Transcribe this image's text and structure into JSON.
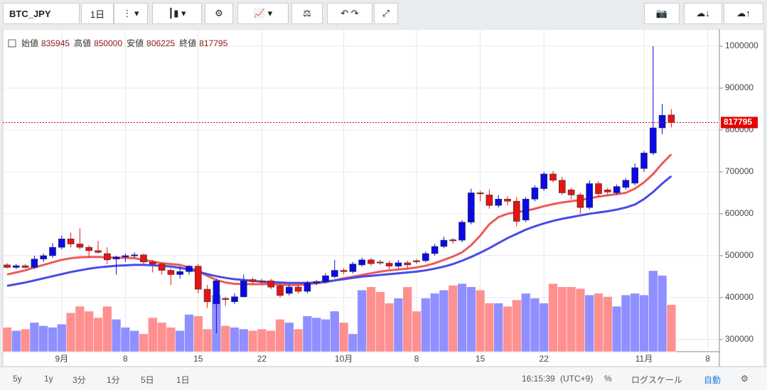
{
  "ui": {
    "symbol": "BTC_JPY",
    "interval": "1日",
    "ranges": [
      "5y",
      "1y",
      "3分",
      "1分",
      "5日",
      "1日"
    ],
    "time": "16:15:39",
    "timezone": "(UTC+9)",
    "percent": "%",
    "log_scale": "ログスケール",
    "auto": "自動"
  },
  "chart_data": {
    "type": "candlestick",
    "ohlc_labels": [
      "始値",
      "高値",
      "安値",
      "終値"
    ],
    "categories": [
      null,
      null,
      null,
      null,
      null,
      null,
      "9月",
      null,
      null,
      null,
      null,
      null,
      null,
      "8",
      null,
      null,
      null,
      null,
      null,
      null,
      null,
      "15",
      null,
      null,
      null,
      null,
      null,
      null,
      "22",
      null,
      null,
      null,
      null,
      null,
      null,
      null,
      null,
      "10月",
      null,
      null,
      null,
      null,
      null,
      null,
      null,
      "8",
      null,
      null,
      null,
      null,
      null,
      null,
      "15",
      null,
      null,
      null,
      null,
      null,
      null,
      "22",
      null,
      null,
      null,
      null,
      null,
      null,
      null,
      null,
      null,
      null,
      "11月",
      null,
      null,
      null,
      null,
      null,
      null,
      "8"
    ],
    "open": [
      478000,
      472000,
      476000,
      472000,
      492000,
      500000,
      520000,
      540000,
      528000,
      520000,
      512000,
      505000,
      492000,
      497000,
      500000,
      502000,
      485000,
      480000,
      465000,
      455000,
      462000,
      475000,
      420000,
      385000,
      398000,
      390000,
      402000,
      443000,
      440000,
      440000,
      428000,
      410000,
      425000,
      415000,
      435000,
      438000,
      450000,
      465000,
      462000,
      478000,
      490000,
      485000,
      482000,
      475000,
      483000,
      488000,
      488000,
      505000,
      522000,
      538000,
      537000,
      580000,
      650000,
      645000,
      620000,
      635000,
      630000,
      585000,
      635000,
      660000,
      695000,
      680000,
      657000,
      645000,
      615000,
      672000,
      657000,
      650000,
      663000,
      673000,
      708000,
      745000,
      805000,
      835945,
      null,
      null,
      null,
      null
    ],
    "high": [
      482000,
      480000,
      480000,
      500000,
      505000,
      530000,
      548000,
      555000,
      565000,
      525000,
      535000,
      520000,
      500000,
      505000,
      508000,
      505000,
      490000,
      485000,
      470000,
      475000,
      478000,
      480000,
      430000,
      445000,
      402000,
      410000,
      455000,
      448000,
      445000,
      445000,
      432000,
      430000,
      430000,
      440000,
      442000,
      458000,
      490000,
      470000,
      485000,
      495000,
      495000,
      490000,
      488000,
      490000,
      488000,
      492000,
      510000,
      528000,
      545000,
      542000,
      585000,
      660000,
      655000,
      658000,
      645000,
      642000,
      640000,
      640000,
      668000,
      700000,
      702000,
      688000,
      662000,
      650000,
      680000,
      678000,
      662000,
      670000,
      685000,
      720000,
      750000,
      1000000,
      862000,
      850000,
      null,
      null,
      null,
      null
    ],
    "low": [
      470000,
      468000,
      470000,
      468000,
      485000,
      495000,
      515000,
      520000,
      515000,
      495000,
      505000,
      480000,
      455000,
      485000,
      495000,
      480000,
      460000,
      455000,
      430000,
      445000,
      455000,
      410000,
      375000,
      315000,
      380000,
      385000,
      400000,
      430000,
      430000,
      420000,
      400000,
      405000,
      410000,
      410000,
      430000,
      434000,
      446000,
      455000,
      458000,
      474000,
      476000,
      478000,
      468000,
      470000,
      470000,
      480000,
      484000,
      500000,
      518000,
      528000,
      532000,
      575000,
      630000,
      612000,
      615000,
      620000,
      570000,
      580000,
      630000,
      655000,
      675000,
      645000,
      635000,
      600000,
      610000,
      640000,
      645000,
      645000,
      658000,
      668000,
      700000,
      740000,
      790000,
      806225,
      null,
      null,
      null,
      null
    ],
    "close": [
      472000,
      476000,
      472000,
      492000,
      500000,
      520000,
      540000,
      528000,
      520000,
      512000,
      508000,
      490000,
      497000,
      500000,
      502000,
      485000,
      480000,
      465000,
      455000,
      462000,
      475000,
      420000,
      390000,
      440000,
      396000,
      402000,
      440000,
      438000,
      437000,
      425000,
      405000,
      425000,
      415000,
      435000,
      438000,
      452000,
      465000,
      462000,
      480000,
      490000,
      481000,
      483000,
      475000,
      483000,
      478000,
      486000,
      505000,
      522000,
      537000,
      536000,
      580000,
      650000,
      648000,
      620000,
      635000,
      630000,
      582000,
      635000,
      662000,
      695000,
      680000,
      650000,
      645000,
      615000,
      672000,
      648000,
      652000,
      665000,
      680000,
      710000,
      745000,
      805000,
      835000,
      817795,
      null,
      null,
      null,
      null
    ],
    "up_color": "#0a0ae6",
    "down_color": "#e61414",
    "volume": {
      "values": [
        30,
        26,
        28,
        36,
        32,
        30,
        34,
        48,
        56,
        50,
        42,
        56,
        40,
        30,
        26,
        22,
        42,
        36,
        30,
        26,
        46,
        44,
        28,
        70,
        32,
        30,
        28,
        26,
        28,
        26,
        40,
        36,
        28,
        44,
        42,
        40,
        50,
        36,
        22,
        76,
        80,
        74,
        60,
        66,
        80,
        50,
        66,
        72,
        76,
        82,
        84,
        80,
        76,
        60,
        60,
        56,
        64,
        72,
        66,
        60,
        84,
        80,
        80,
        78,
        70,
        72,
        68,
        56,
        70,
        72,
        70,
        100,
        94,
        58,
        null,
        null,
        null,
        null
      ],
      "ylim": [
        0,
        100
      ],
      "up_color": "#8f8fff",
      "down_color": "#ff9090"
    },
    "lines": [
      {
        "color": "#ee5a5a",
        "values": [
          455000,
          460000,
          465000,
          472000,
          478000,
          484000,
          490000,
          494000,
          496000,
          497000,
          497000,
          496000,
          495000,
          495000,
          494000,
          490000,
          486000,
          482000,
          480000,
          478000,
          472000,
          463000,
          452000,
          442000,
          436000,
          433000,
          432000,
          432000,
          432000,
          432000,
          431000,
          430000,
          430000,
          432000,
          434000,
          437000,
          441000,
          446000,
          450000,
          454000,
          458000,
          462000,
          465000,
          467000,
          469000,
          472000,
          476000,
          482000,
          490000,
          498000,
          508000,
          525000,
          548000,
          575000,
          592000,
          600000,
          604000,
          607000,
          612000,
          618000,
          623000,
          627000,
          630000,
          633000,
          637000,
          641000,
          644000,
          647000,
          650000,
          660000,
          675000,
          695000,
          720000,
          742000,
          null,
          null,
          null,
          null
        ]
      },
      {
        "color": "#4a4ae8",
        "values": [
          428000,
          432000,
          436000,
          441000,
          446000,
          451000,
          456000,
          461000,
          465000,
          469000,
          472000,
          474000,
          476000,
          477000,
          478000,
          478000,
          477000,
          476000,
          474000,
          471000,
          467000,
          462000,
          456000,
          451000,
          447000,
          444000,
          442000,
          440000,
          438000,
          437000,
          436000,
          435000,
          435000,
          435000,
          436000,
          438000,
          441000,
          444000,
          447000,
          450000,
          452000,
          454000,
          456000,
          458000,
          460000,
          462000,
          465000,
          469000,
          474000,
          480000,
          488000,
          497000,
          507000,
          518000,
          530000,
          542000,
          552000,
          562000,
          570000,
          577000,
          583000,
          588000,
          592000,
          596000,
          600000,
          603000,
          606000,
          610000,
          615000,
          622000,
          635000,
          652000,
          672000,
          690000,
          null,
          null,
          null,
          null
        ]
      }
    ],
    "ylim": [
      271000,
      1039000
    ],
    "yticks": [
      300000,
      400000,
      500000,
      600000,
      700000,
      800000,
      900000,
      1000000
    ],
    "grid": true,
    "last_price_color": "#e60000"
  }
}
